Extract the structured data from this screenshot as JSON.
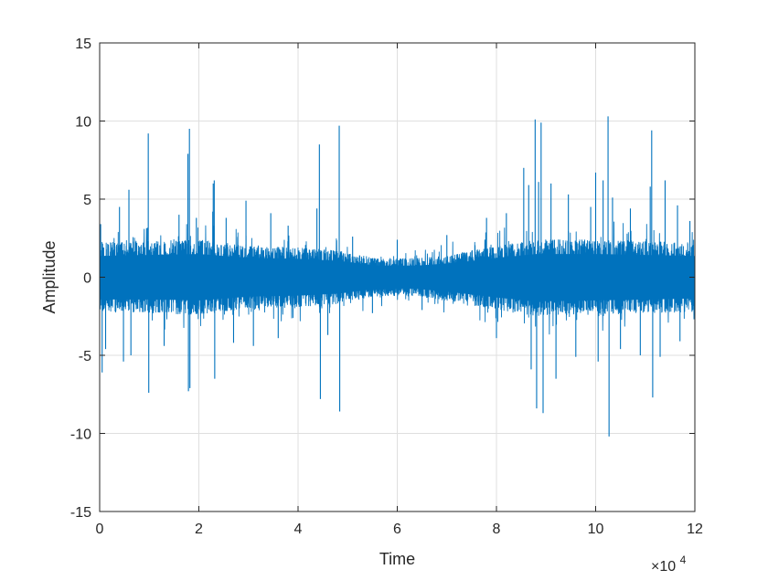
{
  "chart_data": {
    "type": "line",
    "title": "",
    "xlabel": "Time",
    "ylabel": "Amplitude",
    "x_exponent_label": "×10",
    "x_exponent_power": "4",
    "xlim": [
      0,
      120000
    ],
    "ylim": [
      -15,
      15
    ],
    "x_ticks": [
      0,
      20000,
      40000,
      60000,
      80000,
      100000,
      120000
    ],
    "x_tick_labels": [
      "0",
      "2",
      "4",
      "6",
      "8",
      "10",
      "12"
    ],
    "y_ticks": [
      -15,
      -10,
      -5,
      0,
      5,
      10,
      15
    ],
    "y_tick_labels": [
      "-15",
      "-10",
      "-5",
      "0",
      "5",
      "10",
      "15"
    ],
    "grid": true,
    "series_color": "#0072BD",
    "envelope": [
      {
        "x": 0,
        "upper": 2.2,
        "lower": -2.3
      },
      {
        "x": 10000,
        "upper": 2.3,
        "lower": -2.3
      },
      {
        "x": 20000,
        "upper": 2.4,
        "lower": -2.4
      },
      {
        "x": 30000,
        "upper": 2.0,
        "lower": -2.0
      },
      {
        "x": 40000,
        "upper": 1.9,
        "lower": -1.9
      },
      {
        "x": 48000,
        "upper": 1.7,
        "lower": -1.7
      },
      {
        "x": 56000,
        "upper": 1.2,
        "lower": -1.2
      },
      {
        "x": 64000,
        "upper": 1.2,
        "lower": -1.2
      },
      {
        "x": 72000,
        "upper": 1.5,
        "lower": -1.6
      },
      {
        "x": 80000,
        "upper": 2.0,
        "lower": -2.1
      },
      {
        "x": 88000,
        "upper": 2.4,
        "lower": -2.5
      },
      {
        "x": 100000,
        "upper": 2.4,
        "lower": -2.4
      },
      {
        "x": 110000,
        "upper": 2.3,
        "lower": -2.3
      },
      {
        "x": 120000,
        "upper": 2.2,
        "lower": -2.2
      }
    ],
    "peaks": [
      {
        "x": 200,
        "y": 3.4
      },
      {
        "x": 500,
        "y": -6.1
      },
      {
        "x": 1200,
        "y": -4.6
      },
      {
        "x": 4000,
        "y": 4.5
      },
      {
        "x": 4800,
        "y": -5.4
      },
      {
        "x": 5900,
        "y": 5.6
      },
      {
        "x": 6300,
        "y": -5.0
      },
      {
        "x": 9800,
        "y": 9.2
      },
      {
        "x": 9900,
        "y": -7.4
      },
      {
        "x": 13000,
        "y": -4.4
      },
      {
        "x": 16000,
        "y": 4.0
      },
      {
        "x": 17800,
        "y": 7.9
      },
      {
        "x": 17900,
        "y": -7.3
      },
      {
        "x": 18100,
        "y": 9.5
      },
      {
        "x": 18200,
        "y": -7.1
      },
      {
        "x": 19500,
        "y": 3.8
      },
      {
        "x": 22800,
        "y": 4.2
      },
      {
        "x": 22900,
        "y": 6.0
      },
      {
        "x": 23100,
        "y": 6.2
      },
      {
        "x": 23200,
        "y": -6.5
      },
      {
        "x": 25500,
        "y": 3.8
      },
      {
        "x": 27000,
        "y": -4.2
      },
      {
        "x": 29500,
        "y": 4.9
      },
      {
        "x": 31000,
        "y": -4.4
      },
      {
        "x": 34500,
        "y": 4.1
      },
      {
        "x": 36000,
        "y": -3.9
      },
      {
        "x": 38000,
        "y": 3.3
      },
      {
        "x": 43800,
        "y": 4.4
      },
      {
        "x": 44300,
        "y": 8.5
      },
      {
        "x": 44500,
        "y": -7.8
      },
      {
        "x": 46000,
        "y": -3.7
      },
      {
        "x": 48300,
        "y": 9.7
      },
      {
        "x": 48400,
        "y": -8.6
      },
      {
        "x": 51000,
        "y": 2.6
      },
      {
        "x": 55000,
        "y": -2.3
      },
      {
        "x": 60000,
        "y": 2.4
      },
      {
        "x": 65000,
        "y": -2.1
      },
      {
        "x": 70000,
        "y": 2.7
      },
      {
        "x": 78000,
        "y": 3.8
      },
      {
        "x": 80000,
        "y": -3.9
      },
      {
        "x": 82000,
        "y": 4.1
      },
      {
        "x": 85500,
        "y": 7.0
      },
      {
        "x": 86500,
        "y": 5.9
      },
      {
        "x": 87000,
        "y": -5.9
      },
      {
        "x": 87800,
        "y": 10.1
      },
      {
        "x": 88100,
        "y": -8.4
      },
      {
        "x": 88500,
        "y": 6.1
      },
      {
        "x": 89000,
        "y": 9.9
      },
      {
        "x": 89400,
        "y": -8.7
      },
      {
        "x": 91000,
        "y": 6.0
      },
      {
        "x": 92000,
        "y": -6.5
      },
      {
        "x": 94500,
        "y": 5.3
      },
      {
        "x": 96000,
        "y": -5.1
      },
      {
        "x": 99000,
        "y": 4.5
      },
      {
        "x": 100000,
        "y": 6.7
      },
      {
        "x": 100500,
        "y": -5.4
      },
      {
        "x": 101500,
        "y": 6.2
      },
      {
        "x": 102500,
        "y": 10.3
      },
      {
        "x": 102700,
        "y": -10.2
      },
      {
        "x": 103400,
        "y": 5.1
      },
      {
        "x": 105000,
        "y": -4.6
      },
      {
        "x": 107000,
        "y": 4.4
      },
      {
        "x": 109000,
        "y": -5.0
      },
      {
        "x": 111000,
        "y": 5.8
      },
      {
        "x": 111300,
        "y": 9.4
      },
      {
        "x": 111500,
        "y": -7.7
      },
      {
        "x": 113000,
        "y": -5.1
      },
      {
        "x": 114000,
        "y": 6.2
      },
      {
        "x": 116500,
        "y": 4.6
      },
      {
        "x": 117000,
        "y": -4.1
      },
      {
        "x": 119000,
        "y": 3.6
      }
    ]
  }
}
